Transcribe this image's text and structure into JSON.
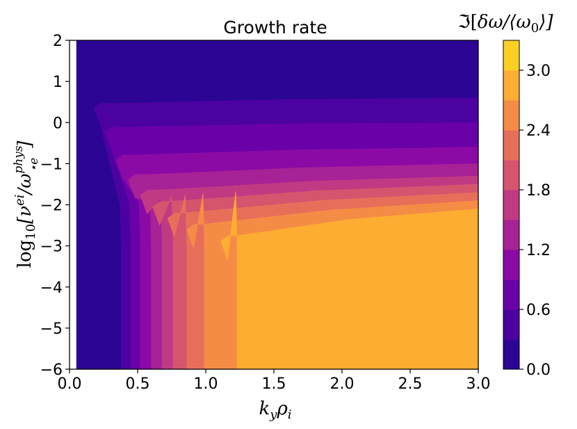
{
  "chart_data": {
    "type": "heatmap",
    "title": "Growth rate",
    "xlabel": "k_yρ_i",
    "ylabel": "log₁₀[ν^ei / ω^phys_⋆e]",
    "colorbar_label": "ℑ[δω/⟨ω₀⟩]",
    "xlim": [
      0.0,
      3.0
    ],
    "ylim": [
      -6,
      2
    ],
    "x_ticks": [
      "0.0",
      "0.5",
      "1.0",
      "1.5",
      "2.0",
      "2.5",
      "3.0"
    ],
    "y_ticks": [
      "−6",
      "−5",
      "−4",
      "−3",
      "−2",
      "−1",
      "0",
      "1",
      "2"
    ],
    "colorbar_ticks": [
      "0.0",
      "0.6",
      "1.2",
      "1.8",
      "2.4",
      "3.0"
    ],
    "colorbar_range": [
      0.0,
      3.3
    ],
    "colormap": "plasma",
    "levels": [
      0.0,
      0.3,
      0.6,
      0.9,
      1.2,
      1.5,
      1.8,
      2.1,
      2.4,
      2.7,
      3.0,
      3.3
    ],
    "colors": [
      "#2c0594",
      "#4c02a1",
      "#6a00a8",
      "#8b0aa5",
      "#a72197",
      "#c03a83",
      "#d5546e",
      "#e76f5a",
      "#f58c46",
      "#fdad32",
      "#fccf25",
      "#f0f921"
    ],
    "data_region": {
      "x_start": 0.05,
      "x_end": 3.0
    },
    "band_boundaries_x_at_low_collisionality": [
      0.38,
      0.45,
      0.52,
      0.6,
      0.68,
      0.76,
      0.86,
      0.99,
      1.23
    ],
    "band_top_y_at_kyrho_3": [
      0.6,
      0.0,
      -0.6,
      -1.0,
      -1.3,
      -1.5,
      -1.7,
      -1.9,
      -2.1,
      -2.45
    ],
    "max_value_region": {
      "kyrho_min": 1.23,
      "log_nu_max_at_kyrho_1_3": -1.8
    }
  }
}
